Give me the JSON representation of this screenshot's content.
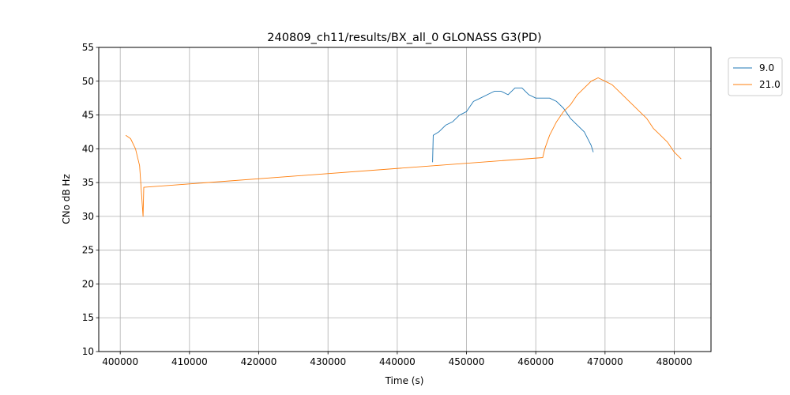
{
  "chart_data": {
    "type": "line",
    "title": "240809_ch11/results/BX_all_0 GLONASS G3(PD)",
    "xlabel": "Time (s)",
    "ylabel": "CNo dB Hz",
    "xlim": [
      396900,
      485300
    ],
    "ylim": [
      10,
      55
    ],
    "xticks": [
      400000,
      410000,
      420000,
      430000,
      440000,
      450000,
      460000,
      470000,
      480000
    ],
    "yticks": [
      10,
      15,
      20,
      25,
      30,
      35,
      40,
      45,
      50,
      55
    ],
    "grid": true,
    "legend_position": "outside-top-right",
    "series": [
      {
        "name": "9.0",
        "color": "#1f77b4",
        "x": [
          445100,
          445200,
          446000,
          447000,
          448000,
          449000,
          450000,
          451000,
          452000,
          453000,
          454000,
          455000,
          456000,
          457000,
          458000,
          459000,
          460000,
          461000,
          462000,
          463000,
          464000,
          465000,
          466000,
          467000,
          468000,
          468300
        ],
        "y": [
          38,
          42,
          42.5,
          43.5,
          44,
          45,
          45.5,
          47,
          47.5,
          48,
          48.5,
          48.5,
          48,
          49,
          49,
          48,
          47.5,
          47.5,
          47.5,
          47,
          46,
          44.5,
          43.5,
          42.5,
          40.5,
          39.5
        ]
      },
      {
        "name": "21.0",
        "color": "#ff7f0e",
        "x": [
          400800,
          401500,
          402200,
          402800,
          403300,
          403400,
          461000,
          461300,
          462000,
          463000,
          464000,
          465000,
          466000,
          467000,
          468000,
          469000,
          470000,
          471000,
          472000,
          473000,
          474000,
          475000,
          476000,
          477000,
          478000,
          479000,
          480000,
          481000
        ],
        "y": [
          42,
          41.5,
          40,
          37.5,
          30,
          34.3,
          38.7,
          40,
          42,
          44,
          45.5,
          46.5,
          48,
          49,
          50,
          50.5,
          50,
          49.5,
          48.5,
          47.5,
          46.5,
          45.5,
          44.5,
          43,
          42,
          41,
          39.5,
          38.5
        ]
      }
    ]
  }
}
